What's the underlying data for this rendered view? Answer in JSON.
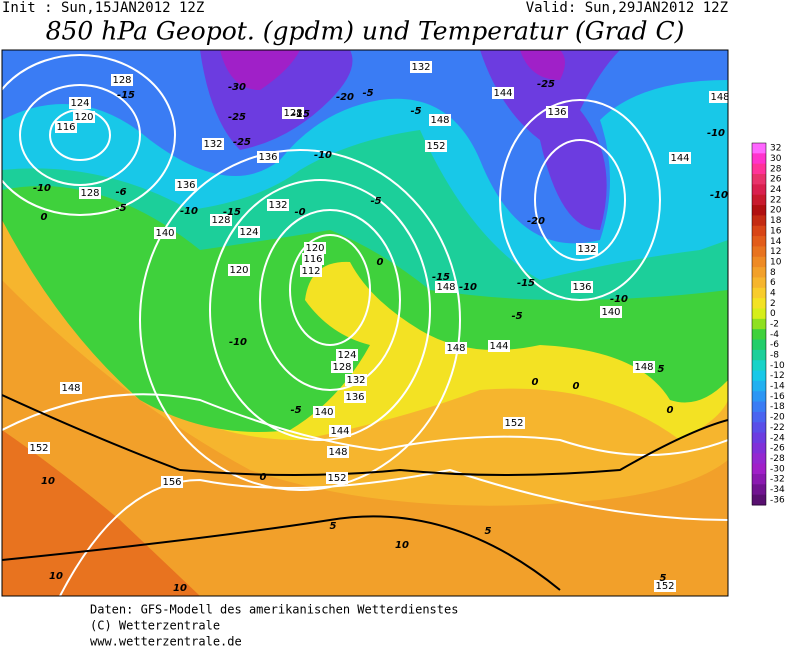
{
  "header": {
    "init": "Init : Sun,15JAN2012 12Z",
    "valid": "Valid: Sun,29JAN2012 12Z",
    "title": "850 hPa Geopot. (gpdm) und Temperatur (Grad C)"
  },
  "legend": {
    "items": [
      {
        "label": "32",
        "color": "#ff66ff"
      },
      {
        "label": "30",
        "color": "#ff33cc"
      },
      {
        "label": "28",
        "color": "#ff3399"
      },
      {
        "label": "26",
        "color": "#e8336b"
      },
      {
        "label": "24",
        "color": "#d9204e"
      },
      {
        "label": "22",
        "color": "#c81a2d"
      },
      {
        "label": "20",
        "color": "#b01010"
      },
      {
        "label": "18",
        "color": "#c42b12"
      },
      {
        "label": "16",
        "color": "#d84516"
      },
      {
        "label": "14",
        "color": "#e25c1a"
      },
      {
        "label": "12",
        "color": "#e8731f"
      },
      {
        "label": "10",
        "color": "#ee8a24"
      },
      {
        "label": "8",
        "color": "#f2a02a"
      },
      {
        "label": "6",
        "color": "#f6b52e"
      },
      {
        "label": "4",
        "color": "#f8cc2c"
      },
      {
        "label": "2",
        "color": "#f3e223"
      },
      {
        "label": "0",
        "color": "#d6ee1a"
      },
      {
        "label": "-2",
        "color": "#8fe020"
      },
      {
        "label": "-4",
        "color": "#3fd13c"
      },
      {
        "label": "-6",
        "color": "#22cd6a"
      },
      {
        "label": "-8",
        "color": "#1ccf9a"
      },
      {
        "label": "-10",
        "color": "#18d3c8"
      },
      {
        "label": "-12",
        "color": "#18c8e8"
      },
      {
        "label": "-14",
        "color": "#22b0f0"
      },
      {
        "label": "-16",
        "color": "#2c96f4"
      },
      {
        "label": "-18",
        "color": "#3a7cf4"
      },
      {
        "label": "-20",
        "color": "#4a64f0"
      },
      {
        "label": "-22",
        "color": "#5a4ee8"
      },
      {
        "label": "-24",
        "color": "#6c3ce0"
      },
      {
        "label": "-26",
        "color": "#8030d8"
      },
      {
        "label": "-28",
        "color": "#9428d0"
      },
      {
        "label": "-30",
        "color": "#a020c8"
      },
      {
        "label": "-32",
        "color": "#8a1ab0"
      },
      {
        "label": "-34",
        "color": "#701490"
      },
      {
        "label": "-36",
        "color": "#581070"
      }
    ]
  },
  "geopotential_labels": [
    "128",
    "124",
    "120",
    "116",
    "132",
    "136",
    "128",
    "140",
    "128",
    "124",
    "120",
    "132",
    "136",
    "128",
    "132",
    "148",
    "152",
    "144",
    "136",
    "148",
    "144",
    "132",
    "136",
    "140",
    "148",
    "120",
    "116",
    "112",
    "124",
    "128",
    "132",
    "136",
    "140",
    "144",
    "148",
    "152",
    "156",
    "152",
    "148",
    "148",
    "144",
    "148",
    "152",
    "152"
  ],
  "temperature_labels": [
    "-15",
    "-30",
    "-25",
    "-25",
    "-15",
    "-20",
    "-5",
    "-5",
    "-10",
    "-10",
    "-10",
    "-6",
    "-5",
    "-15",
    "-0",
    "-5",
    "-25",
    "-20",
    "-15",
    "-10",
    "-15",
    "-10",
    "-10",
    "-10",
    "-5",
    "-10",
    "-5",
    "0",
    "0",
    "0",
    "0",
    "0",
    "5",
    "0",
    "10",
    "5",
    "10",
    "5",
    "10",
    "10",
    "5"
  ],
  "footer": [
    "Daten: GFS-Modell des amerikanischen Wetterdienstes",
    "(C) Wetterzentrale",
    "www.wetterzentrale.de"
  ]
}
